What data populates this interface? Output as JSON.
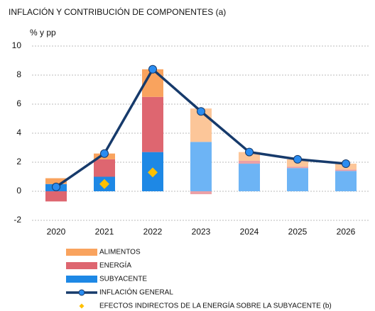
{
  "chart_data": {
    "type": "bar",
    "stacked": true,
    "title": "INFLACIÓN Y CONTRIBUCIÓN DE COMPONENTES (a)",
    "y_label": "% y pp",
    "categories": [
      "2020",
      "2021",
      "2022",
      "2023",
      "2024",
      "2025",
      "2026"
    ],
    "ylim": [
      -2,
      10
    ],
    "yticks": [
      -2,
      0,
      2,
      4,
      6,
      8,
      10
    ],
    "grid": true,
    "series": [
      {
        "name": "ALIMENTOS",
        "type": "bar",
        "color": "#F9A35E",
        "colors": [
          "#F9A35E",
          "#F9A35E",
          "#F9A35E",
          "#FCC699",
          "#FCC699",
          "#FCC699",
          "#FCC699"
        ],
        "values": [
          0.4,
          0.4,
          1.9,
          2.3,
          0.6,
          0.5,
          0.4
        ]
      },
      {
        "name": "ENERGÍA",
        "type": "bar",
        "color": "#DE6670",
        "colors": [
          "#DE6670",
          "#DE6670",
          "#DE6670",
          "#EBA0A6",
          "#EBA0A6",
          "#EBA0A6",
          "#EBA0A6"
        ],
        "values": [
          -0.7,
          1.2,
          3.8,
          -0.2,
          0.2,
          0.1,
          0.1
        ]
      },
      {
        "name": "SUBYACENTE",
        "type": "bar",
        "color": "#1E88E5",
        "colors": [
          "#1E88E5",
          "#1E88E5",
          "#1E88E5",
          "#6DB4F5",
          "#6DB4F5",
          "#6DB4F5",
          "#6DB4F5"
        ],
        "values": [
          0.5,
          1.0,
          2.7,
          3.4,
          1.9,
          1.6,
          1.4
        ]
      },
      {
        "name": "INFLACIÓN GENERAL",
        "type": "line",
        "color": "#163A6B",
        "marker_color": "#2A8CF0",
        "values": [
          0.3,
          2.6,
          8.4,
          5.5,
          2.7,
          2.2,
          1.9
        ]
      },
      {
        "name": "EFECTOS INDIRECTOS DE LA ENERGÍA SOBRE LA SUBYACENTE (b)",
        "type": "scatter",
        "color": "#FFC000",
        "values": [
          null,
          0.5,
          1.3,
          null,
          null,
          null,
          null
        ]
      }
    ]
  }
}
